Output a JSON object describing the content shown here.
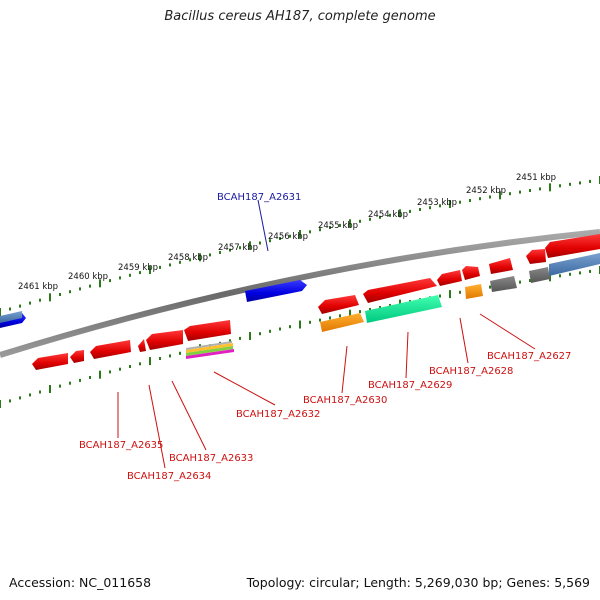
{
  "title": "Bacillus cereus AH187, complete genome",
  "footer": {
    "accession": "Accession: NC_011658",
    "info": "Topology: circular; Length: 5,269,030 bp; Genes: 5,569"
  },
  "colors": {
    "backbone": "#7a7a7a",
    "tick": "#2a7a1a",
    "label_forward": "#1a1aa0",
    "label_reverse": "#cc1111",
    "leader": "#cc1111",
    "leader_forward": "#1a1aa0"
  },
  "scale_labels": [
    "2461 kbp",
    "2460 kbp",
    "2459 kbp",
    "2458 kbp",
    "2457 kbp",
    "2456 kbp",
    "2455 kbp",
    "2454 kbp",
    "2453 kbp",
    "2452 kbp",
    "2451 kbp"
  ],
  "gene_labels": [
    {
      "text": "BCAH187_A2631",
      "strand": "forward"
    },
    {
      "text": "BCAH187_A2627",
      "strand": "reverse"
    },
    {
      "text": "BCAH187_A2628",
      "strand": "reverse"
    },
    {
      "text": "BCAH187_A2629",
      "strand": "reverse"
    },
    {
      "text": "BCAH187_A2630",
      "strand": "reverse"
    },
    {
      "text": "BCAH187_A2632",
      "strand": "reverse"
    },
    {
      "text": "BCAH187_A2633",
      "strand": "reverse"
    },
    {
      "text": "BCAH187_A2634",
      "strand": "reverse"
    },
    {
      "text": "BCAH187_A2635",
      "strand": "reverse"
    }
  ]
}
